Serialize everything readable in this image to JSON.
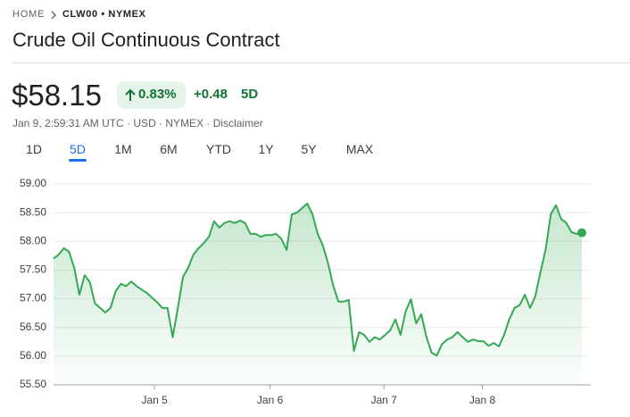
{
  "breadcrumb": {
    "home": "HOME",
    "ticker": "CLW00 • NYMEX"
  },
  "title": "Crude Oil Continuous Contract",
  "quote": {
    "price": "$58.15",
    "change_pct": "0.83%",
    "change_abs": "+0.48",
    "change_period": "5D",
    "meta": "Jan 9, 2:59:31 AM UTC · USD · NYMEX · Disclaimer"
  },
  "tabs": [
    "1D",
    "5D",
    "1M",
    "6M",
    "YTD",
    "1Y",
    "5Y",
    "MAX"
  ],
  "selected_tab": 1,
  "chart_data": {
    "type": "line",
    "color": "#34a853",
    "grid": true,
    "values": [
      57.7,
      57.77,
      57.88,
      57.82,
      57.54,
      57.07,
      57.41,
      57.29,
      56.92,
      56.84,
      56.76,
      56.84,
      57.13,
      57.26,
      57.22,
      57.3,
      57.22,
      57.16,
      57.1,
      57.02,
      56.94,
      56.84,
      56.84,
      56.33,
      56.84,
      57.38,
      57.54,
      57.77,
      57.88,
      57.97,
      58.08,
      58.35,
      58.24,
      58.32,
      58.35,
      58.32,
      58.36,
      58.32,
      58.13,
      58.13,
      58.08,
      58.11,
      58.11,
      58.13,
      58.04,
      57.85,
      58.47,
      58.5,
      58.58,
      58.66,
      58.47,
      58.13,
      57.93,
      57.62,
      57.23,
      56.95,
      56.95,
      56.98,
      56.09,
      56.42,
      56.37,
      56.25,
      56.33,
      56.29,
      56.37,
      56.45,
      56.64,
      56.37,
      56.79,
      56.99,
      56.57,
      56.73,
      56.33,
      56.06,
      56.01,
      56.21,
      56.29,
      56.33,
      56.42,
      56.33,
      56.25,
      56.29,
      56.26,
      56.26,
      56.18,
      56.23,
      56.17,
      56.37,
      56.64,
      56.84,
      56.89,
      57.07,
      56.84,
      57.04,
      57.46,
      57.85,
      58.47,
      58.63,
      58.39,
      58.32,
      58.16,
      58.13,
      58.15
    ],
    "xlim": [
      0,
      102
    ],
    "xticks": [
      {
        "value": 19.5,
        "label": "Jan 5"
      },
      {
        "value": 41.8,
        "label": "Jan 6"
      },
      {
        "value": 63.8,
        "label": "Jan 7"
      },
      {
        "value": 82.8,
        "label": "Jan 8"
      }
    ],
    "ylim": [
      55.5,
      59.0
    ],
    "yticks": [
      {
        "value": 55.5,
        "label": "55.50"
      },
      {
        "value": 56.0,
        "label": "56.00"
      },
      {
        "value": 56.5,
        "label": "56.50"
      },
      {
        "value": 57.0,
        "label": "57.00"
      },
      {
        "value": 57.5,
        "label": "57.50"
      },
      {
        "value": 58.0,
        "label": "58.00"
      },
      {
        "value": 58.5,
        "label": "58.50"
      },
      {
        "value": 59.0,
        "label": "59.00"
      }
    ]
  }
}
